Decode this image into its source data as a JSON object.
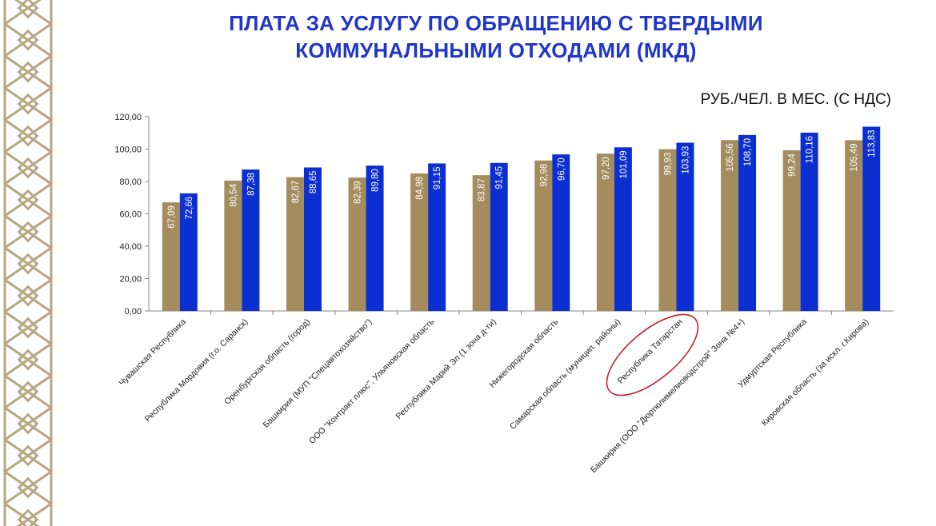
{
  "title": {
    "line1": "ПЛАТА ЗА УСЛУГУ ПО ОБРАЩЕНИЮ С ТВЕРДЫМИ",
    "line2": "КОММУНАЛЬНЫМИ ОТХОДАМИ (МКД)"
  },
  "unit_label": "РУБ./ЧЕЛ. В МЕС. (С НДС)",
  "colors": {
    "series1": "#a48c5e",
    "series2": "#0b2fd1",
    "title": "#1f36c9",
    "highlight": "#c8202a",
    "ornament": "#b8a582"
  },
  "chart_data": {
    "type": "bar",
    "categories": [
      "Чувашская Республика",
      "Республика Мордовия (г.о. Саранск)",
      "Оренбургская область (город)",
      "Башкирия (МУП \"Спецавтохозяйство\")",
      "ООО \"Контракт плюс\", Ульяновская область",
      "Республика Марий Эл (1 зона д-ти)",
      "Нижегородская  область",
      "Самарская область (муницип. районы)",
      "Республика Татарстан",
      "Башкирия (ООО \"Дюртюлимелиоводстрой\" Зона №4+)",
      "Удмуртская Республика",
      "Кировская область (за искл. г.Кирова)"
    ],
    "series": [
      {
        "values": [
          67.09,
          80.54,
          82.67,
          82.39,
          84.98,
          83.87,
          92.98,
          97.2,
          99.93,
          105.56,
          99.24,
          105.49
        ]
      },
      {
        "values": [
          72.66,
          87.38,
          88.65,
          89.8,
          91.15,
          91.45,
          96.7,
          101.09,
          103.93,
          108.7,
          110.16,
          113.83
        ]
      }
    ],
    "value_labels": [
      [
        "67,09",
        "80,54",
        "82,67",
        "82,39",
        "84,98",
        "83,87",
        "92,98",
        "97,20",
        "99,93",
        "105,56",
        "99,24",
        "105,49"
      ],
      [
        "72,66",
        "87,38",
        "88,65",
        "89,80",
        "91,15",
        "91,45",
        "96,70",
        "101,09",
        "103,93",
        "108,70",
        "110,16",
        "113,83"
      ]
    ],
    "y_ticks": [
      "0,00",
      "20,00",
      "40,00",
      "60,00",
      "80,00",
      "100,00",
      "120,00"
    ],
    "ylim": [
      0,
      120
    ],
    "grid": false,
    "legend": "none",
    "highlighted_category": "Республика Татарстан"
  }
}
